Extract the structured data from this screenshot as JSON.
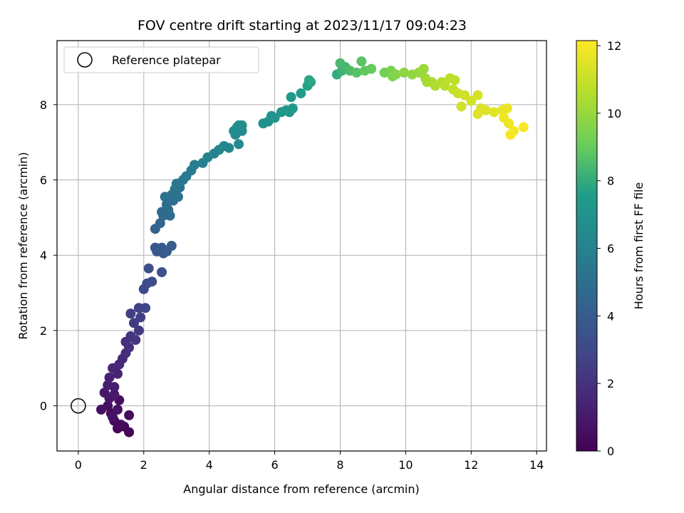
{
  "chart_data": {
    "type": "scatter",
    "title": "FOV centre drift starting at 2023/11/17 09:04:23",
    "xlabel": "Angular distance from reference (arcmin)",
    "ylabel": "Rotation from reference (arcmin)",
    "xlim": [
      -0.65,
      14.3
    ],
    "ylim": [
      -1.2,
      9.7
    ],
    "x_ticks": [
      0,
      2,
      4,
      6,
      8,
      10,
      12,
      14
    ],
    "y_ticks": [
      0,
      2,
      4,
      6,
      8
    ],
    "grid": true,
    "legend": {
      "placement": "top-left",
      "entries": [
        {
          "label": "Reference platepar",
          "marker": "open-circle"
        }
      ]
    },
    "reference_point": {
      "x": 0,
      "y": 0,
      "label": "Reference platepar"
    },
    "colorbar": {
      "label": "Hours from first FF file",
      "range": [
        0,
        12.15
      ],
      "ticks": [
        0,
        2,
        4,
        6,
        8,
        10,
        12
      ],
      "colormap": "viridis"
    },
    "series": [
      {
        "points": [
          [
            1.55,
            -0.7,
            0.1
          ],
          [
            1.4,
            -0.55,
            0.2
          ],
          [
            1.2,
            -0.6,
            0.25
          ],
          [
            1.1,
            -0.4,
            0.3
          ],
          [
            1.3,
            -0.5,
            0.35
          ],
          [
            1.55,
            -0.25,
            0.4
          ],
          [
            1.0,
            -0.2,
            0.45
          ],
          [
            1.25,
            0.15,
            0.5
          ],
          [
            0.9,
            0.0,
            0.55
          ],
          [
            0.7,
            -0.1,
            0.6
          ],
          [
            1.05,
            -0.3,
            0.65
          ],
          [
            1.2,
            -0.1,
            0.7
          ],
          [
            0.95,
            0.2,
            0.8
          ],
          [
            0.8,
            0.35,
            0.9
          ],
          [
            1.1,
            0.3,
            1.0
          ],
          [
            0.9,
            0.55,
            1.1
          ],
          [
            1.1,
            0.5,
            1.2
          ],
          [
            0.95,
            0.75,
            1.3
          ],
          [
            1.2,
            0.85,
            1.4
          ],
          [
            1.05,
            1.0,
            1.5
          ],
          [
            1.25,
            1.1,
            1.6
          ],
          [
            1.35,
            1.25,
            1.7
          ],
          [
            1.45,
            1.4,
            1.8
          ],
          [
            1.55,
            1.55,
            1.9
          ],
          [
            1.45,
            1.7,
            2.0
          ],
          [
            1.6,
            1.85,
            2.1
          ],
          [
            1.75,
            1.75,
            2.2
          ],
          [
            1.85,
            2.0,
            2.3
          ],
          [
            1.7,
            2.2,
            2.4
          ],
          [
            1.9,
            2.35,
            2.5
          ],
          [
            1.6,
            2.45,
            2.55
          ],
          [
            1.85,
            2.6,
            2.7
          ],
          [
            2.05,
            2.6,
            2.8
          ],
          [
            2.0,
            3.1,
            3.0
          ],
          [
            2.1,
            3.25,
            3.1
          ],
          [
            2.25,
            3.3,
            3.2
          ],
          [
            2.15,
            3.65,
            3.3
          ],
          [
            2.55,
            3.55,
            3.45
          ],
          [
            2.4,
            4.1,
            3.6
          ],
          [
            2.35,
            4.2,
            3.7
          ],
          [
            2.6,
            4.05,
            3.8
          ],
          [
            2.55,
            4.2,
            3.9
          ],
          [
            2.85,
            4.25,
            4.0
          ],
          [
            2.7,
            4.1,
            4.05
          ],
          [
            2.35,
            4.7,
            4.3
          ],
          [
            2.5,
            4.85,
            4.5
          ],
          [
            2.6,
            5.05,
            4.6
          ],
          [
            2.55,
            5.15,
            4.7
          ],
          [
            2.8,
            5.05,
            4.8
          ],
          [
            2.75,
            5.2,
            4.85
          ],
          [
            2.7,
            5.35,
            4.9
          ],
          [
            2.9,
            5.45,
            5.0
          ],
          [
            2.65,
            5.55,
            5.05
          ],
          [
            2.85,
            5.6,
            5.1
          ],
          [
            3.05,
            5.55,
            5.2
          ],
          [
            2.95,
            5.75,
            5.25
          ],
          [
            3.1,
            5.8,
            5.3
          ],
          [
            3.0,
            5.9,
            5.4
          ],
          [
            3.2,
            6.0,
            5.5
          ],
          [
            3.3,
            6.1,
            5.6
          ],
          [
            3.45,
            6.25,
            5.7
          ],
          [
            3.55,
            6.4,
            5.8
          ],
          [
            3.8,
            6.45,
            5.9
          ],
          [
            3.95,
            6.6,
            6.0
          ],
          [
            4.15,
            6.7,
            6.1
          ],
          [
            4.3,
            6.8,
            6.2
          ],
          [
            4.45,
            6.9,
            6.3
          ],
          [
            4.6,
            6.85,
            6.35
          ],
          [
            4.9,
            6.95,
            6.4
          ],
          [
            4.8,
            7.2,
            6.5
          ],
          [
            5.0,
            7.3,
            6.55
          ],
          [
            4.9,
            7.45,
            6.6
          ],
          [
            4.85,
            7.4,
            6.65
          ],
          [
            4.75,
            7.3,
            6.7
          ],
          [
            5.0,
            7.45,
            6.75
          ],
          [
            5.65,
            7.5,
            6.9
          ],
          [
            5.8,
            7.55,
            6.95
          ],
          [
            5.9,
            7.7,
            7.0
          ],
          [
            6.0,
            7.65,
            7.1
          ],
          [
            6.2,
            7.8,
            7.2
          ],
          [
            6.35,
            7.85,
            7.3
          ],
          [
            6.45,
            7.8,
            7.35
          ],
          [
            6.55,
            7.9,
            7.4
          ],
          [
            6.5,
            8.2,
            7.5
          ],
          [
            6.8,
            8.3,
            7.6
          ],
          [
            7.0,
            8.5,
            7.7
          ],
          [
            7.05,
            8.65,
            7.8
          ],
          [
            7.1,
            8.6,
            7.85
          ],
          [
            7.9,
            8.8,
            8.0
          ],
          [
            8.05,
            8.9,
            8.2
          ],
          [
            8.15,
            9.0,
            8.35
          ],
          [
            8.0,
            9.1,
            8.45
          ],
          [
            8.3,
            8.9,
            8.55
          ],
          [
            8.5,
            8.85,
            8.7
          ],
          [
            8.65,
            9.15,
            8.8
          ],
          [
            8.75,
            8.9,
            8.9
          ],
          [
            8.95,
            8.95,
            9.0
          ],
          [
            9.35,
            8.85,
            9.2
          ],
          [
            9.55,
            8.9,
            9.4
          ],
          [
            9.6,
            8.75,
            9.5
          ],
          [
            9.7,
            8.8,
            9.6
          ],
          [
            9.95,
            8.85,
            9.8
          ],
          [
            10.2,
            8.8,
            9.9
          ],
          [
            10.4,
            8.85,
            10.0
          ],
          [
            10.55,
            8.95,
            10.1
          ],
          [
            10.6,
            8.7,
            10.2
          ],
          [
            10.65,
            8.6,
            10.3
          ],
          [
            10.8,
            8.6,
            10.4
          ],
          [
            10.9,
            8.5,
            10.5
          ],
          [
            11.1,
            8.6,
            10.6
          ],
          [
            11.2,
            8.5,
            10.7
          ],
          [
            11.35,
            8.7,
            10.75
          ],
          [
            11.5,
            8.65,
            10.8
          ],
          [
            11.45,
            8.4,
            10.9
          ],
          [
            11.6,
            8.3,
            11.0
          ],
          [
            11.8,
            8.25,
            11.1
          ],
          [
            11.7,
            7.95,
            11.15
          ],
          [
            12.0,
            8.1,
            11.2
          ],
          [
            12.2,
            8.25,
            11.3
          ],
          [
            12.3,
            7.9,
            11.4
          ],
          [
            12.45,
            7.85,
            11.45
          ],
          [
            12.2,
            7.75,
            11.5
          ],
          [
            12.7,
            7.8,
            11.6
          ],
          [
            12.95,
            7.85,
            11.7
          ],
          [
            13.1,
            7.9,
            11.75
          ],
          [
            13.0,
            7.65,
            11.8
          ],
          [
            13.15,
            7.5,
            11.85
          ],
          [
            13.3,
            7.3,
            11.9
          ],
          [
            13.2,
            7.2,
            11.95
          ],
          [
            13.6,
            7.4,
            12.05
          ]
        ]
      }
    ]
  }
}
